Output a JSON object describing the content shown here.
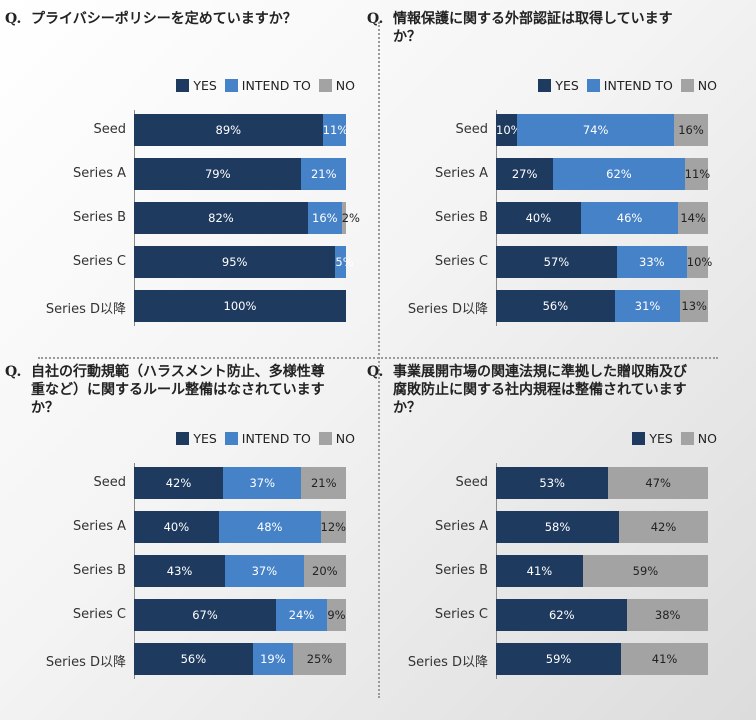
{
  "colors": {
    "yes": "#1f3a5f",
    "intend": "#4682c8",
    "no": "#a3a3a3"
  },
  "legend": {
    "yes": "YES",
    "intend": "INTEND TO",
    "no": "NO"
  },
  "chart_data": [
    {
      "type": "bar",
      "stacked": true,
      "orientation": "horizontal",
      "qmark": "Q.",
      "title": "プライバシーポリシーを定めていますか？",
      "categories": [
        "Seed",
        "Series A",
        "Series B",
        "Series C",
        "Series D以降"
      ],
      "series": [
        {
          "key": "yes",
          "name": "YES",
          "values": [
            89,
            79,
            82,
            95,
            100
          ]
        },
        {
          "key": "intend",
          "name": "INTEND TO",
          "values": [
            11,
            21,
            16,
            5,
            0
          ]
        },
        {
          "key": "no",
          "name": "NO",
          "values": [
            0,
            0,
            2,
            0,
            0
          ]
        }
      ],
      "xlim": [
        0,
        100
      ]
    },
    {
      "type": "bar",
      "stacked": true,
      "orientation": "horizontal",
      "qmark": "Q.",
      "title": "情報保護に関する外部認証は取得していますか？",
      "categories": [
        "Seed",
        "Series A",
        "Series B",
        "Series C",
        "Series D以降"
      ],
      "series": [
        {
          "key": "yes",
          "name": "YES",
          "values": [
            10,
            27,
            40,
            57,
            56
          ]
        },
        {
          "key": "intend",
          "name": "INTEND TO",
          "values": [
            74,
            62,
            46,
            33,
            31
          ]
        },
        {
          "key": "no",
          "name": "NO",
          "values": [
            16,
            11,
            14,
            10,
            13
          ]
        }
      ],
      "xlim": [
        0,
        100
      ]
    },
    {
      "type": "bar",
      "stacked": true,
      "orientation": "horizontal",
      "qmark": "Q.",
      "title": "自社の行動規範（ハラスメント防止、多様性尊重など）に関するルール整備はなされていますか？",
      "categories": [
        "Seed",
        "Series A",
        "Series B",
        "Series C",
        "Series D以降"
      ],
      "series": [
        {
          "key": "yes",
          "name": "YES",
          "values": [
            42,
            40,
            43,
            67,
            56
          ]
        },
        {
          "key": "intend",
          "name": "INTEND TO",
          "values": [
            37,
            48,
            37,
            24,
            19
          ]
        },
        {
          "key": "no",
          "name": "NO",
          "values": [
            21,
            12,
            20,
            9,
            25
          ]
        }
      ],
      "xlim": [
        0,
        100
      ]
    },
    {
      "type": "bar",
      "stacked": true,
      "orientation": "horizontal",
      "qmark": "Q.",
      "title": "事業展開市場の関連法規に準拠した贈収賄及び腐敗防止に関する社内規程は整備されていますか？",
      "categories": [
        "Seed",
        "Series A",
        "Series B",
        "Series C",
        "Series D以降"
      ],
      "series": [
        {
          "key": "yes",
          "name": "YES",
          "values": [
            53,
            58,
            41,
            62,
            59
          ]
        },
        {
          "key": "no",
          "name": "NO",
          "values": [
            47,
            42,
            59,
            38,
            41
          ]
        }
      ],
      "xlim": [
        0,
        100
      ]
    }
  ]
}
